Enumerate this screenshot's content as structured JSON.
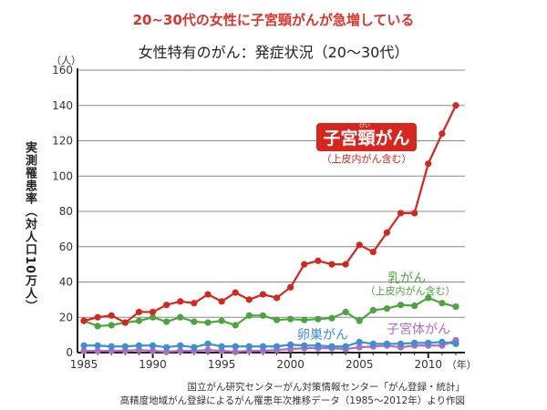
{
  "headline": "20~30代の女性に子宮頸がんが急増している",
  "chart_data": {
    "type": "line",
    "title": "女性特有のがん：発症状況（20～30代）",
    "ylabel": "実測罹患率（対人口10万人）",
    "yunit": "（人）",
    "xunit": "（年）",
    "ylim": [
      0,
      160
    ],
    "yticks": [
      0,
      20,
      40,
      60,
      80,
      100,
      120,
      140,
      160
    ],
    "xticks": [
      1985,
      1990,
      1995,
      2000,
      2005,
      2010
    ],
    "grid": true,
    "x": [
      1985,
      1986,
      1987,
      1988,
      1989,
      1990,
      1991,
      1992,
      1993,
      1994,
      1995,
      1996,
      1997,
      1998,
      1999,
      2000,
      2001,
      2002,
      2003,
      2004,
      2005,
      2006,
      2007,
      2008,
      2009,
      2010,
      2011,
      2012
    ],
    "series": [
      {
        "name": "子宮頸がん",
        "furigana": "けい",
        "note": "（上皮内がん含む）",
        "color": "#d7261e",
        "values": [
          18,
          20,
          21,
          17,
          23,
          23,
          27,
          29,
          28,
          33,
          29,
          34,
          30,
          33,
          31,
          37,
          50,
          52,
          50,
          50,
          61,
          57,
          68,
          79,
          79,
          107,
          124,
          140
        ]
      },
      {
        "name": "乳がん",
        "note": "（上皮内がん含む）",
        "color": "#4aa63c",
        "values": [
          18,
          15,
          15.5,
          17,
          18,
          20,
          17.5,
          20,
          17.5,
          17,
          18,
          15.5,
          21,
          21,
          18.5,
          19,
          18.5,
          19,
          19.5,
          23,
          18,
          24,
          25,
          27,
          26.5,
          31,
          28,
          26
        ]
      },
      {
        "name": "卵巣がん",
        "color": "#3c8fd0",
        "values": [
          4,
          4,
          3.5,
          3.5,
          4,
          4,
          3,
          4,
          3,
          5,
          3.5,
          3.5,
          3.5,
          3.5,
          3.5,
          4.5,
          4,
          4,
          3.5,
          3.5,
          6,
          5,
          5,
          5,
          5.5,
          5.5,
          6,
          5
        ]
      },
      {
        "name": "子宮体がん",
        "color": "#b06cc0",
        "values": [
          1,
          1,
          1,
          1,
          1.5,
          1,
          0.5,
          1,
          1,
          1.5,
          1,
          0.5,
          1,
          1,
          1.5,
          2,
          2.5,
          2.5,
          2.5,
          2,
          3,
          3.5,
          4,
          3,
          4,
          4,
          4,
          7
        ]
      }
    ]
  },
  "source": [
    "国立がん研究センターがん対策情報センター「がん登録・統計」",
    "高精度地域がん登録によるがん罹患年次推移データ（1985～2012年）より作図"
  ]
}
